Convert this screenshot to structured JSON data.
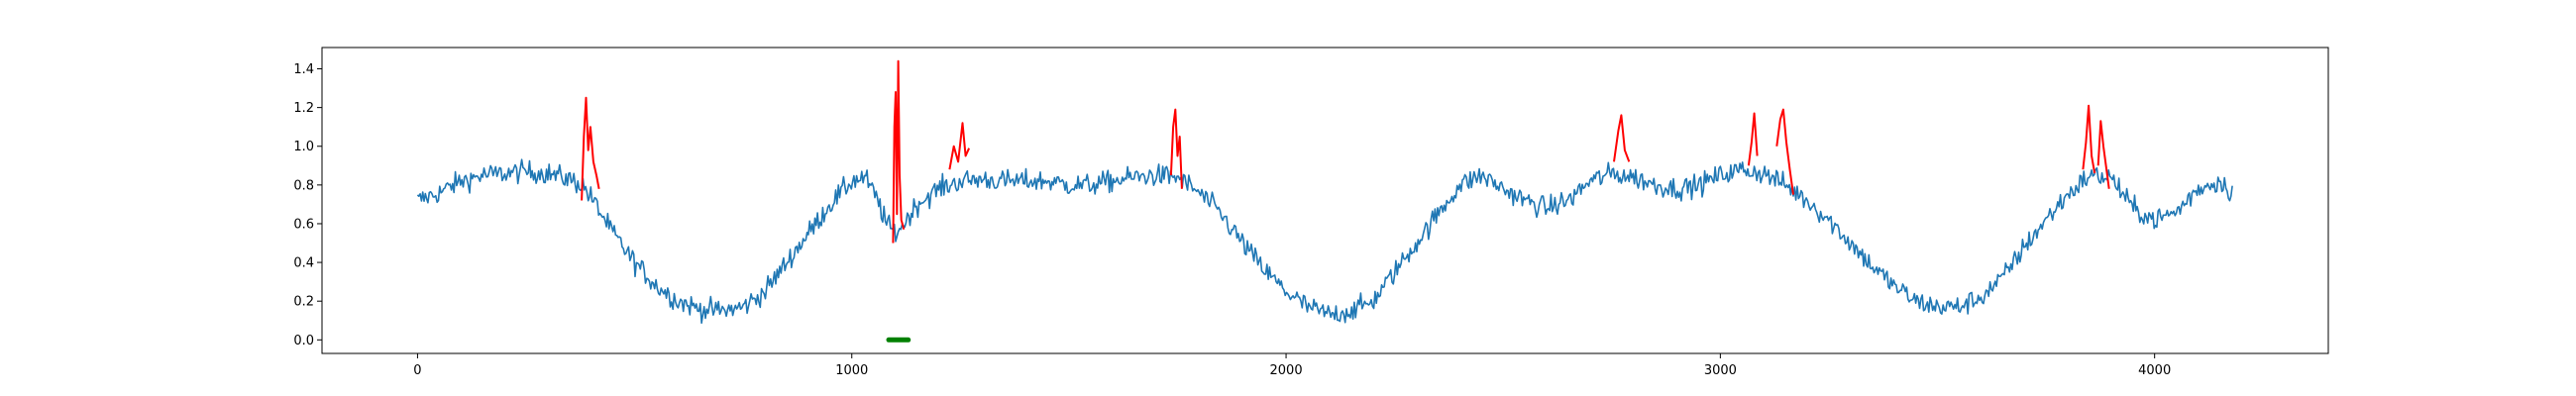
{
  "chart_data": {
    "type": "line",
    "title": "",
    "xlabel": "",
    "ylabel": "",
    "xlim": [
      -220,
      4400
    ],
    "ylim": [
      -0.07,
      1.51
    ],
    "xticks": [
      0,
      1000,
      2000,
      3000,
      4000
    ],
    "xtick_labels": [
      "0",
      "1000",
      "2000",
      "3000",
      "4000"
    ],
    "yticks": [
      0.0,
      0.2,
      0.4,
      0.6,
      0.8,
      1.0,
      1.2,
      1.4
    ],
    "ytick_labels": [
      "0.0",
      "0.2",
      "0.4",
      "0.6",
      "0.8",
      "1.0",
      "1.2",
      "1.4"
    ],
    "grid": false,
    "legend": "none",
    "series": [
      {
        "role": "signal",
        "color": "#1f77b4",
        "points": [
          [
            0,
            0.72
          ],
          [
            50,
            0.76
          ],
          [
            100,
            0.82
          ],
          [
            150,
            0.85
          ],
          [
            200,
            0.86
          ],
          [
            250,
            0.87
          ],
          [
            300,
            0.86
          ],
          [
            350,
            0.83
          ],
          [
            380,
            0.8
          ],
          [
            410,
            0.7
          ],
          [
            450,
            0.55
          ],
          [
            500,
            0.4
          ],
          [
            550,
            0.28
          ],
          [
            600,
            0.2
          ],
          [
            650,
            0.16
          ],
          [
            700,
            0.15
          ],
          [
            750,
            0.17
          ],
          [
            800,
            0.25
          ],
          [
            850,
            0.4
          ],
          [
            900,
            0.55
          ],
          [
            950,
            0.7
          ],
          [
            1000,
            0.82
          ],
          [
            1030,
            0.84
          ],
          [
            1060,
            0.72
          ],
          [
            1080,
            0.6
          ],
          [
            1100,
            0.55
          ],
          [
            1120,
            0.6
          ],
          [
            1150,
            0.7
          ],
          [
            1200,
            0.78
          ],
          [
            1250,
            0.82
          ],
          [
            1300,
            0.83
          ],
          [
            1350,
            0.82
          ],
          [
            1400,
            0.82
          ],
          [
            1450,
            0.82
          ],
          [
            1500,
            0.8
          ],
          [
            1550,
            0.8
          ],
          [
            1600,
            0.82
          ],
          [
            1650,
            0.84
          ],
          [
            1700,
            0.85
          ],
          [
            1750,
            0.84
          ],
          [
            1800,
            0.76
          ],
          [
            1850,
            0.65
          ],
          [
            1900,
            0.5
          ],
          [
            1950,
            0.36
          ],
          [
            2000,
            0.25
          ],
          [
            2050,
            0.17
          ],
          [
            2100,
            0.13
          ],
          [
            2150,
            0.15
          ],
          [
            2200,
            0.2
          ],
          [
            2250,
            0.35
          ],
          [
            2300,
            0.5
          ],
          [
            2350,
            0.65
          ],
          [
            2400,
            0.8
          ],
          [
            2450,
            0.85
          ],
          [
            2500,
            0.78
          ],
          [
            2550,
            0.72
          ],
          [
            2600,
            0.68
          ],
          [
            2650,
            0.72
          ],
          [
            2700,
            0.82
          ],
          [
            2750,
            0.86
          ],
          [
            2800,
            0.84
          ],
          [
            2850,
            0.8
          ],
          [
            2900,
            0.78
          ],
          [
            2950,
            0.8
          ],
          [
            3000,
            0.85
          ],
          [
            3050,
            0.88
          ],
          [
            3100,
            0.86
          ],
          [
            3150,
            0.8
          ],
          [
            3200,
            0.72
          ],
          [
            3250,
            0.62
          ],
          [
            3300,
            0.5
          ],
          [
            3350,
            0.38
          ],
          [
            3400,
            0.28
          ],
          [
            3450,
            0.2
          ],
          [
            3500,
            0.17
          ],
          [
            3550,
            0.17
          ],
          [
            3600,
            0.22
          ],
          [
            3650,
            0.32
          ],
          [
            3700,
            0.48
          ],
          [
            3750,
            0.62
          ],
          [
            3800,
            0.75
          ],
          [
            3850,
            0.85
          ],
          [
            3900,
            0.84
          ],
          [
            3950,
            0.68
          ],
          [
            4000,
            0.62
          ],
          [
            4050,
            0.66
          ],
          [
            4100,
            0.78
          ],
          [
            4150,
            0.82
          ],
          [
            4180,
            0.76
          ]
        ],
        "noise": 0.055
      },
      {
        "role": "anomaly segments",
        "color": "#ff0000",
        "segments": [
          [
            [
              378,
              0.72
            ],
            [
              383,
              1.05
            ],
            [
              388,
              1.25
            ],
            [
              393,
              0.98
            ],
            [
              398,
              1.1
            ],
            [
              405,
              0.92
            ],
            [
              412,
              0.85
            ],
            [
              418,
              0.78
            ]
          ],
          [
            [
              1095,
              0.5
            ],
            [
              1098,
              1.1
            ],
            [
              1101,
              1.28
            ],
            [
              1104,
              0.65
            ],
            [
              1107,
              1.44
            ],
            [
              1110,
              0.85
            ],
            [
              1114,
              0.62
            ],
            [
              1120,
              0.57
            ]
          ],
          [
            [
              1225,
              0.88
            ],
            [
              1235,
              1.0
            ],
            [
              1245,
              0.92
            ],
            [
              1255,
              1.12
            ],
            [
              1262,
              0.95
            ],
            [
              1270,
              0.99
            ]
          ],
          [
            [
              1735,
              0.85
            ],
            [
              1740,
              1.1
            ],
            [
              1745,
              1.19
            ],
            [
              1750,
              0.95
            ],
            [
              1755,
              1.05
            ],
            [
              1760,
              0.78
            ]
          ],
          [
            [
              2755,
              0.92
            ],
            [
              2765,
              1.08
            ],
            [
              2772,
              1.16
            ],
            [
              2780,
              0.98
            ],
            [
              2790,
              0.92
            ]
          ],
          [
            [
              3065,
              0.9
            ],
            [
              3072,
              1.02
            ],
            [
              3078,
              1.17
            ],
            [
              3085,
              0.95
            ]
          ],
          [
            [
              3130,
              1.0
            ],
            [
              3138,
              1.14
            ],
            [
              3145,
              1.19
            ],
            [
              3152,
              1.02
            ],
            [
              3160,
              0.88
            ],
            [
              3168,
              0.75
            ]
          ],
          [
            [
              3835,
              0.88
            ],
            [
              3842,
              1.02
            ],
            [
              3848,
              1.21
            ],
            [
              3855,
              0.95
            ],
            [
              3862,
              0.86
            ]
          ],
          [
            [
              3870,
              0.9
            ],
            [
              3876,
              1.13
            ],
            [
              3882,
              1.0
            ],
            [
              3888,
              0.9
            ],
            [
              3895,
              0.78
            ]
          ]
        ]
      },
      {
        "role": "marker",
        "color": "#008000",
        "x_range": [
          1085,
          1130
        ],
        "y": 0.0
      }
    ]
  }
}
